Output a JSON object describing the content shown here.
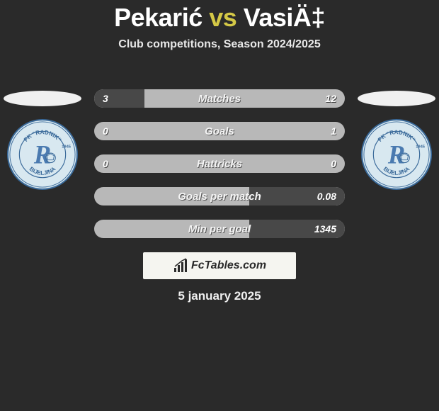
{
  "header": {
    "player1": "Pekarić",
    "separator": "vs",
    "player2": "VasiÄ‡",
    "subtitle": "Club competitions, Season 2024/2025"
  },
  "club_badge": {
    "top_text": "FK \"RADNIK\"",
    "bottom_text": "BIJELJINA",
    "year": "1945",
    "outer_fill": "#d8e8f0",
    "ring_color": "#3a6a9a",
    "letter_color": "#4a7ab0",
    "text_color": "#3a6a9a"
  },
  "stats": {
    "track_color": "#b8b8b8",
    "fill_color": "#484848",
    "rows": [
      {
        "label": "Matches",
        "left": "3",
        "right": "12",
        "left_pct": 20,
        "right_pct": 0
      },
      {
        "label": "Goals",
        "left": "0",
        "right": "1",
        "left_pct": 0,
        "right_pct": 0
      },
      {
        "label": "Hattricks",
        "left": "0",
        "right": "0",
        "left_pct": 0,
        "right_pct": 0
      },
      {
        "label": "Goals per match",
        "left": "",
        "right": "0.08",
        "left_pct": 0,
        "right_pct": 38
      },
      {
        "label": "Min per goal",
        "left": "",
        "right": "1345",
        "left_pct": 0,
        "right_pct": 38
      }
    ]
  },
  "sponsor": {
    "text": "FcTables.com"
  },
  "date": "5 january 2025",
  "colors": {
    "background": "#2a2a2a",
    "accent": "#d4c846",
    "text_light": "#f0f0f0"
  }
}
